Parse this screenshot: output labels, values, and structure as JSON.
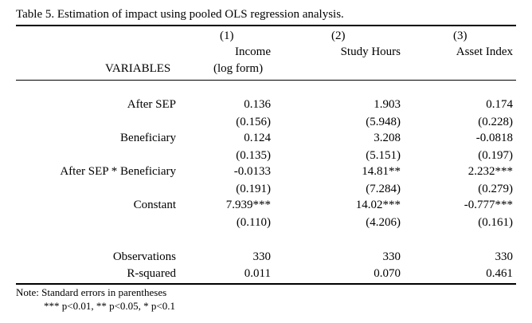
{
  "table": {
    "title": "Table 5. Estimation of impact using pooled OLS regression analysis.",
    "col_numbers": [
      "(1)",
      "(2)",
      "(3)"
    ],
    "col_headers": [
      "Income",
      "Study Hours",
      "Asset Index"
    ],
    "col_subheader": "(log form)",
    "variables_label": "VARIABLES",
    "rows": [
      {
        "label": "After SEP",
        "values": [
          "0.136",
          "1.903",
          "0.174"
        ]
      },
      {
        "label": "",
        "values": [
          "(0.156)",
          "(5.948)",
          "(0.228)"
        ]
      },
      {
        "label": "Beneficiary",
        "values": [
          "0.124",
          "3.208",
          "-0.0818"
        ]
      },
      {
        "label": "",
        "values": [
          "(0.135)",
          "(5.151)",
          "(0.197)"
        ]
      },
      {
        "label": "After SEP * Beneficiary",
        "values": [
          "-0.0133",
          "14.81**",
          "2.232***"
        ]
      },
      {
        "label": "",
        "values": [
          "(0.191)",
          "(7.284)",
          "(0.279)"
        ]
      },
      {
        "label": "Constant",
        "values": [
          "7.939***",
          "14.02***",
          "-0.777***"
        ]
      },
      {
        "label": "",
        "values": [
          "(0.110)",
          "(4.206)",
          "(0.161)"
        ]
      },
      {
        "label": "Observations",
        "values": [
          "330",
          "330",
          "330"
        ]
      },
      {
        "label": "R-squared",
        "values": [
          "0.011",
          "0.070",
          "0.461"
        ]
      }
    ],
    "note_line1": "Note: Standard errors in parentheses",
    "note_line2": "*** p<0.01, ** p<0.05, * p<0.1"
  }
}
